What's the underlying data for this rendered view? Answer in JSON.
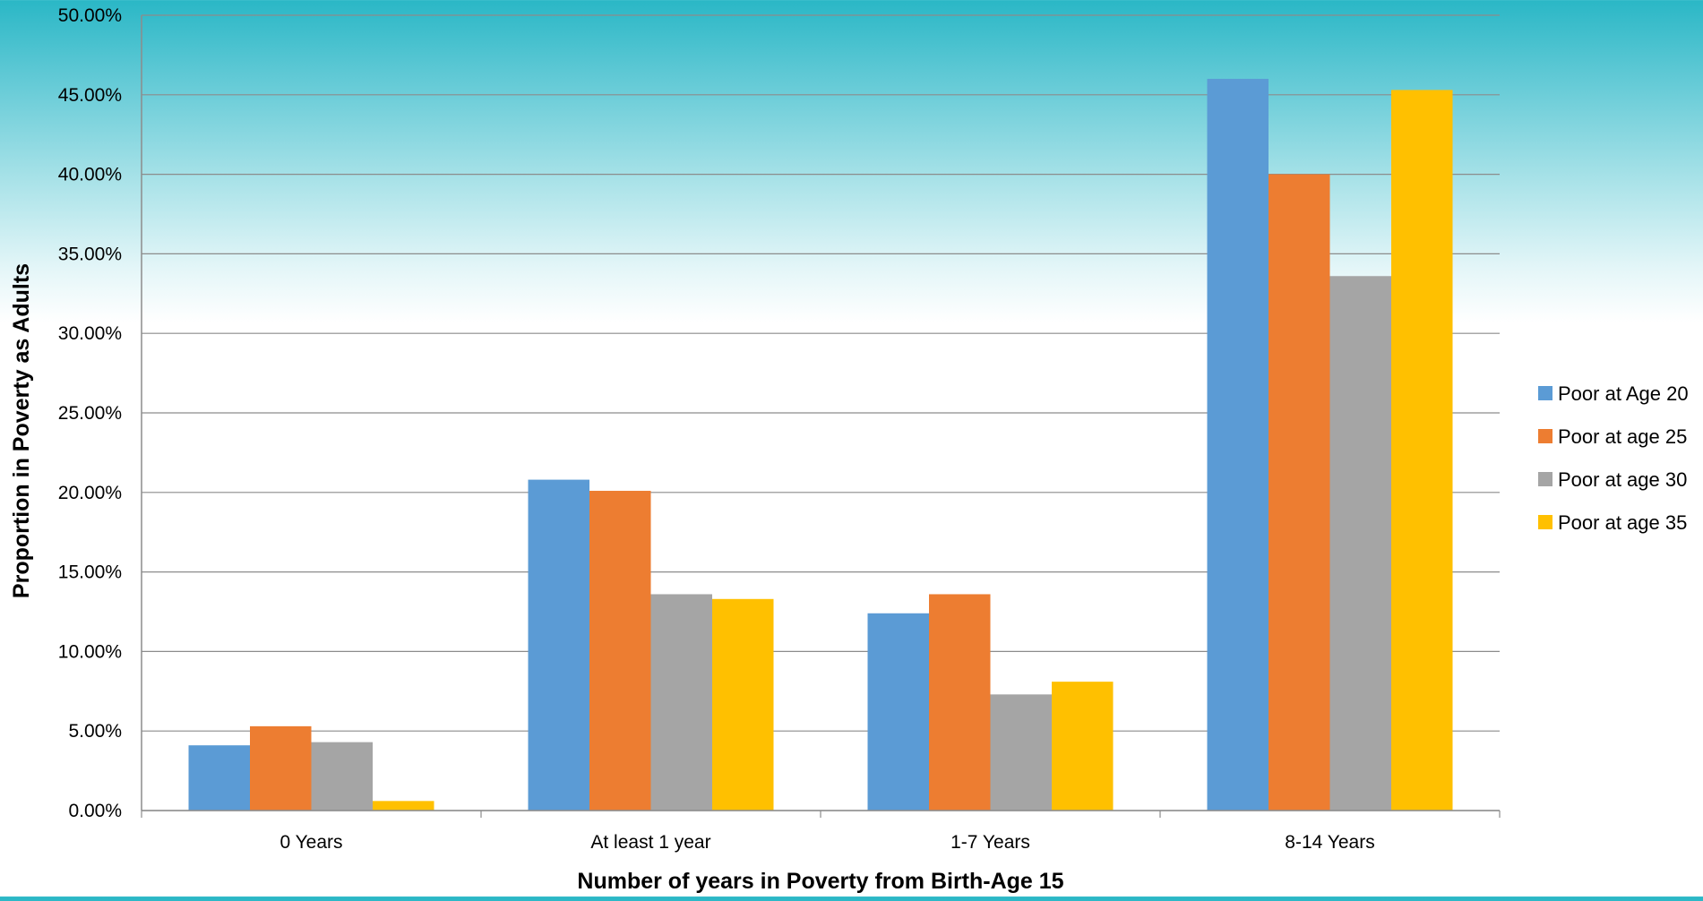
{
  "chart_data": {
    "type": "bar",
    "title": "",
    "xlabel": "Number of years in Poverty from Birth-Age 15",
    "ylabel": "Proportion in Poverty as Adults",
    "categories": [
      "0 Years",
      "At least 1 year",
      "1-7 Years",
      "8-14 Years"
    ],
    "series": [
      {
        "name": "Poor at Age 20",
        "color": "#5b9bd5",
        "values": [
          4.1,
          20.8,
          12.4,
          46.0
        ]
      },
      {
        "name": "Poor at age 25",
        "color": "#ed7d31",
        "values": [
          5.3,
          20.1,
          13.6,
          40.0
        ]
      },
      {
        "name": "Poor at age 30",
        "color": "#a5a5a5",
        "values": [
          4.3,
          13.6,
          7.3,
          33.6
        ]
      },
      {
        "name": "Poor at age 35",
        "color": "#ffc000",
        "values": [
          0.6,
          13.3,
          8.1,
          45.3
        ]
      }
    ],
    "ylim": [
      0,
      50
    ],
    "yticks": [
      "0.00%",
      "5.00%",
      "10.00%",
      "15.00%",
      "20.00%",
      "25.00%",
      "30.00%",
      "35.00%",
      "40.00%",
      "45.00%",
      "50.00%"
    ],
    "grid": true,
    "legend_position": "right"
  }
}
